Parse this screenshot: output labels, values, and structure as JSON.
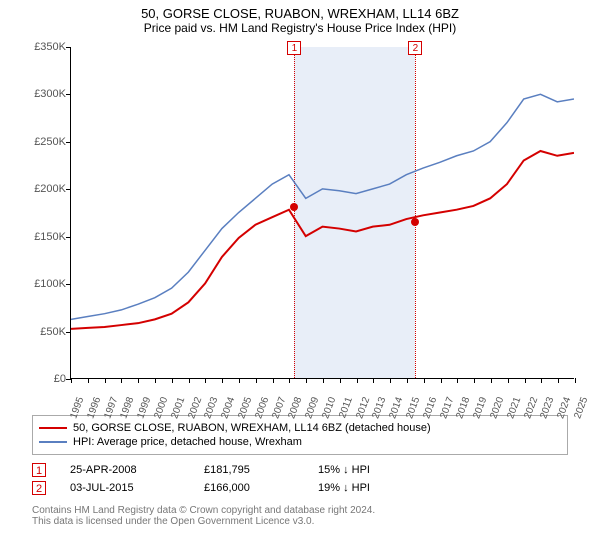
{
  "title": "50, GORSE CLOSE, RUABON, WREXHAM, LL14 6BZ",
  "subtitle": "Price paid vs. HM Land Registry's House Price Index (HPI)",
  "chart": {
    "type": "line",
    "plot_bg": "#ffffff",
    "ylim": [
      0,
      350000
    ],
    "ytick_step": 50000,
    "yticks_labels": [
      "£0",
      "£50K",
      "£100K",
      "£150K",
      "£200K",
      "£250K",
      "£300K",
      "£350K"
    ],
    "x_years": [
      1995,
      1996,
      1997,
      1998,
      1999,
      2000,
      2001,
      2002,
      2003,
      2004,
      2005,
      2006,
      2007,
      2008,
      2009,
      2010,
      2011,
      2012,
      2013,
      2014,
      2015,
      2016,
      2017,
      2018,
      2019,
      2020,
      2021,
      2022,
      2023,
      2024,
      2025
    ],
    "grid_color": "#000000",
    "series": [
      {
        "name": "property",
        "label": "50, GORSE CLOSE, RUABON, WREXHAM, LL14 6BZ (detached house)",
        "color": "#d40000",
        "width": 2,
        "values": [
          52,
          53,
          54,
          56,
          58,
          62,
          68,
          80,
          100,
          128,
          148,
          162,
          170,
          178,
          150,
          160,
          158,
          155,
          160,
          162,
          168,
          172,
          175,
          178,
          182,
          190,
          205,
          230,
          240,
          235,
          238
        ]
      },
      {
        "name": "hpi",
        "label": "HPI: Average price, detached house, Wrexham",
        "color": "#5a7fc0",
        "width": 1.5,
        "values": [
          62,
          65,
          68,
          72,
          78,
          85,
          95,
          112,
          135,
          158,
          175,
          190,
          205,
          215,
          190,
          200,
          198,
          195,
          200,
          205,
          215,
          222,
          228,
          235,
          240,
          250,
          270,
          295,
          300,
          292,
          295
        ]
      }
    ],
    "shaded_band": {
      "from_year": 2008.3,
      "to_year": 2015.5,
      "color": "#e8eef8"
    },
    "markers": [
      {
        "tag": "1",
        "year": 2008.3,
        "color": "#d40000"
      },
      {
        "tag": "2",
        "year": 2015.5,
        "color": "#d40000"
      }
    ],
    "sale_points": [
      {
        "year": 2008.3,
        "price": 181795
      },
      {
        "year": 2015.5,
        "price": 166000
      }
    ]
  },
  "sales": [
    {
      "tag": "1",
      "date": "25-APR-2008",
      "price": "£181,795",
      "delta": "15% ↓ HPI"
    },
    {
      "tag": "2",
      "date": "03-JUL-2015",
      "price": "£166,000",
      "delta": "19% ↓ HPI"
    }
  ],
  "footer_line1": "Contains HM Land Registry data © Crown copyright and database right 2024.",
  "footer_line2": "This data is licensed under the Open Government Licence v3.0."
}
